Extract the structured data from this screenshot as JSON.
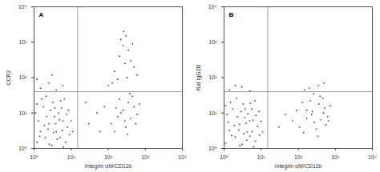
{
  "chart_data": [
    {
      "type": "scatter",
      "annotation": "A",
      "x_label": "Integrin αM/CD11b",
      "y_label": "CCR2",
      "color": "#1f3f96",
      "log": true,
      "grid": false,
      "marker": "dot",
      "xlim": [
        1,
        10000
      ],
      "ylim": [
        1,
        10000
      ],
      "xticks": [
        {
          "value": 1,
          "label": "10⁰"
        },
        {
          "value": 10,
          "label": "10¹"
        },
        {
          "value": 100,
          "label": "10²"
        },
        {
          "value": 1000,
          "label": "10³"
        },
        {
          "value": 10000,
          "label": "10⁴"
        }
      ],
      "yticks": [
        {
          "value": 1,
          "label": "10⁰"
        },
        {
          "value": 10,
          "label": "10¹"
        },
        {
          "value": 100,
          "label": "10²"
        },
        {
          "value": 1000,
          "label": "10³"
        },
        {
          "value": 10000,
          "label": "10⁴"
        }
      ],
      "quadrant_x": 15,
      "quadrant_y": 40,
      "x": [
        1.2,
        1.5,
        2,
        2.5,
        3,
        3.5,
        4,
        5,
        6,
        7,
        8,
        1.1,
        1.8,
        2.2,
        2.8,
        3.2,
        4.5,
        5.5,
        6.5,
        1.3,
        1.6,
        2.4,
        3.8,
        4.2,
        5.8,
        7.5,
        9,
        10,
        1.4,
        1.9,
        2.6,
        3.4,
        4.8,
        6.2,
        8.5,
        11,
        1.2,
        2.1,
        3.6,
        5.2,
        1.5,
        2.5,
        4,
        6,
        1.2,
        3,
        120,
        180,
        250,
        300,
        350,
        400,
        500,
        600,
        200,
        150,
        450,
        280,
        700,
        220,
        330,
        550,
        160,
        380,
        30,
        50,
        25,
        60,
        80,
        100,
        150,
        200,
        250,
        300,
        350,
        400,
        180,
        500,
        220,
        280,
        320,
        450,
        260,
        130,
        600
      ],
      "y": [
        1.5,
        3,
        2,
        5,
        1.2,
        8,
        3,
        2,
        6,
        1.5,
        4,
        10,
        15,
        8,
        12,
        20,
        10,
        14,
        25,
        6,
        25,
        3.5,
        5,
        1.8,
        3.2,
        9,
        2.5,
        6,
        2.2,
        4.5,
        1.3,
        2.8,
        6.5,
        1.1,
        12,
        3,
        18,
        30,
        14,
        22,
        50,
        70,
        45,
        60,
        90,
        120,
        5,
        8,
        12,
        4,
        20,
        7,
        15,
        9,
        25,
        3,
        30,
        6,
        18,
        10,
        2.5,
        5,
        14,
        35,
        5,
        10,
        20,
        3,
        15,
        60,
        150,
        400,
        800,
        1500,
        600,
        300,
        90,
        200,
        1200,
        250,
        100,
        900,
        2000,
        70,
        120
      ]
    },
    {
      "type": "scatter",
      "annotation": "B",
      "x_label": "Integrin αM/CD11b",
      "y_label": "Rat IgG2B",
      "color": "#1f3f96",
      "log": true,
      "grid": false,
      "marker": "dot",
      "xlim": [
        1,
        10000
      ],
      "ylim": [
        1,
        10000
      ],
      "xticks": [
        {
          "value": 1,
          "label": "10⁰"
        },
        {
          "value": 10,
          "label": "10¹"
        },
        {
          "value": 100,
          "label": "10²"
        },
        {
          "value": 1000,
          "label": "10³"
        },
        {
          "value": 10000,
          "label": "10⁴"
        }
      ],
      "yticks": [
        {
          "value": 1,
          "label": "10⁰"
        },
        {
          "value": 10,
          "label": "10¹"
        },
        {
          "value": 100,
          "label": "10²"
        },
        {
          "value": 1000,
          "label": "10³"
        },
        {
          "value": 10000,
          "label": "10⁴"
        }
      ],
      "quadrant_x": 15,
      "quadrant_y": 40,
      "x": [
        1.1,
        1.4,
        2,
        2.6,
        3.1,
        3.6,
        4.2,
        5,
        6,
        7,
        8,
        1.2,
        1.7,
        2.3,
        2.9,
        3.3,
        4.4,
        5.6,
        6.8,
        1.3,
        1.5,
        2.5,
        3.9,
        4.1,
        5.7,
        7.2,
        9,
        10,
        1.6,
        1.9,
        2.7,
        3.4,
        4.9,
        6.3,
        8.7,
        11,
        1.1,
        2.2,
        3.7,
        5.1,
        1.4,
        3,
        5,
        2,
        110,
        170,
        240,
        310,
        360,
        410,
        520,
        620,
        210,
        140,
        460,
        270,
        720,
        230,
        340,
        560,
        170,
        390,
        130,
        480,
        260,
        650,
        30,
        45,
        70,
        90,
        200,
        350,
        150,
        500
      ],
      "y": [
        1.4,
        3.2,
        2.1,
        4.8,
        1.3,
        7.5,
        2.9,
        2.2,
        6.2,
        1.6,
        4.2,
        9,
        13,
        7.8,
        11,
        18,
        9.5,
        13,
        22,
        5.5,
        20,
        3.3,
        5.2,
        1.7,
        3,
        8.5,
        2.4,
        5.8,
        2.3,
        4.4,
        1.2,
        2.6,
        6,
        1.1,
        11,
        2.9,
        16,
        26,
        13,
        19,
        45,
        55,
        42,
        60,
        4,
        7,
        11,
        3.5,
        18,
        6.5,
        14,
        8,
        22,
        2.8,
        26,
        5.5,
        16,
        9,
        2.2,
        4.6,
        12,
        30,
        20,
        10,
        35,
        6,
        4,
        9,
        6,
        12,
        50,
        60,
        45,
        70
      ]
    }
  ]
}
